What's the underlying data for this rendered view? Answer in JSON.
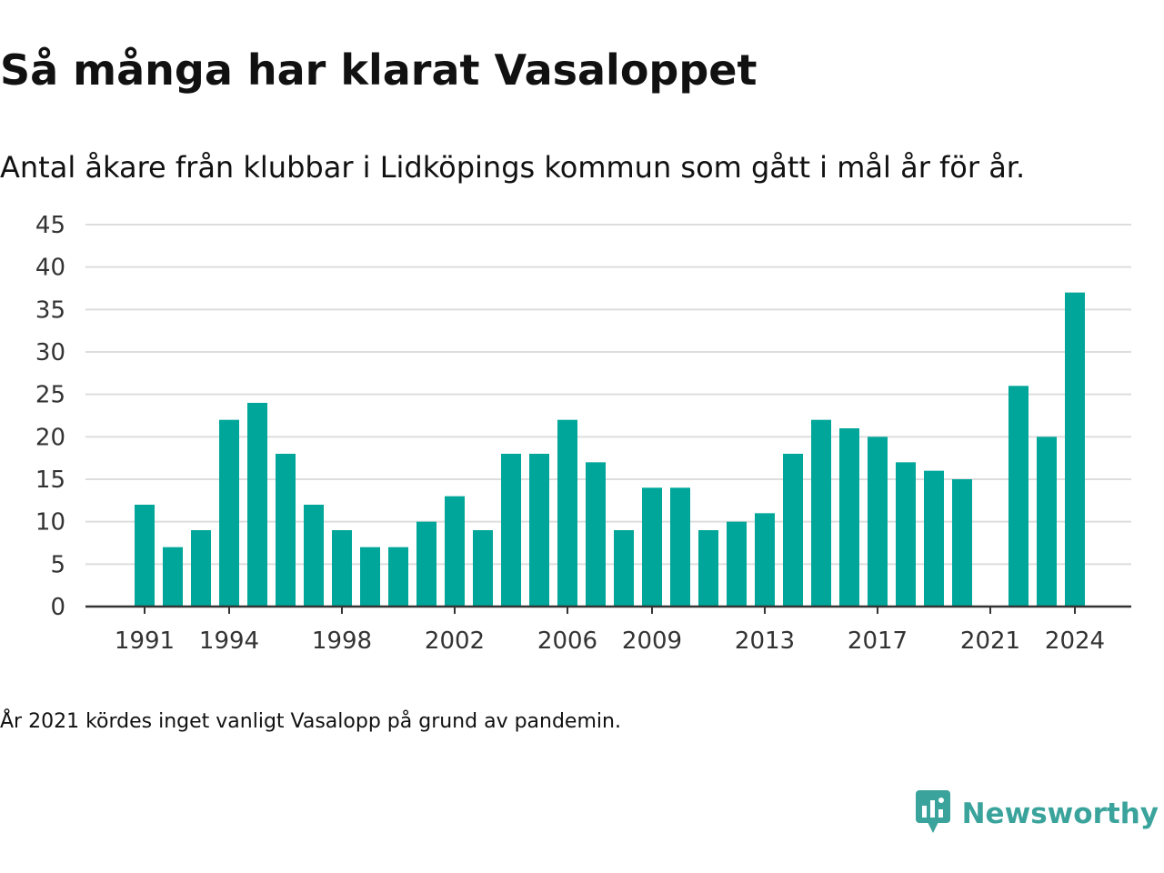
{
  "title": "Så många har klarat Vasaloppet",
  "subtitle": "Antal åkare från klubbar i Lidköpings kommun som gått i mål år för år.",
  "footnote": "År 2021 kördes inget vanligt Vasalopp på grund av pandemin.",
  "brand": {
    "name": "Newsworthy",
    "icon": "bar-chart-speech-bubble-icon",
    "color": "#3aa39b"
  },
  "colors": {
    "bar": "#00a69a",
    "grid": "#dddddd",
    "axis": "#333333"
  },
  "chart_data": {
    "type": "bar",
    "title": "Så många har klarat Vasaloppet",
    "subtitle": "Antal åkare från klubbar i Lidköpings kommun som gått i mål år för år.",
    "xlabel": "",
    "ylabel": "",
    "ylim": [
      0,
      45
    ],
    "yticks": [
      0,
      5,
      10,
      15,
      20,
      25,
      30,
      35,
      40,
      45
    ],
    "xticks": [
      1991,
      1994,
      1998,
      2002,
      2006,
      2009,
      2013,
      2017,
      2021,
      2024
    ],
    "grid": true,
    "legend": "none",
    "x": [
      1991,
      1992,
      1993,
      1994,
      1995,
      1996,
      1997,
      1998,
      1999,
      2000,
      2001,
      2002,
      2003,
      2004,
      2005,
      2006,
      2007,
      2008,
      2009,
      2010,
      2011,
      2012,
      2013,
      2014,
      2015,
      2016,
      2017,
      2018,
      2019,
      2020,
      2021,
      2022,
      2023,
      2024
    ],
    "values": [
      12,
      7,
      9,
      22,
      24,
      18,
      12,
      9,
      7,
      7,
      10,
      13,
      9,
      18,
      18,
      22,
      17,
      9,
      14,
      14,
      9,
      10,
      11,
      18,
      22,
      21,
      20,
      17,
      16,
      15,
      null,
      26,
      20,
      37
    ]
  }
}
